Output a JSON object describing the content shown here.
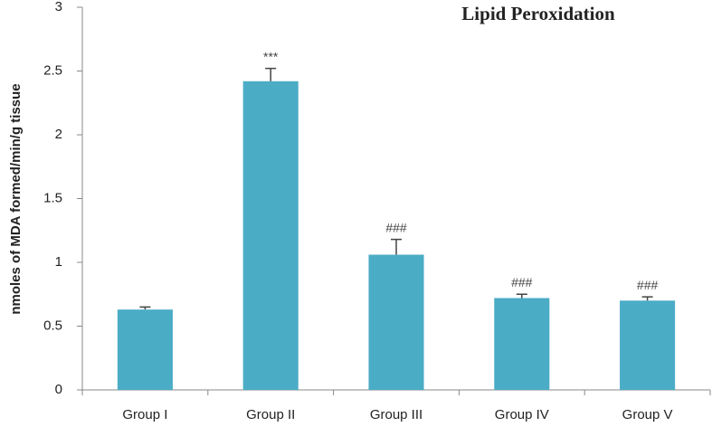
{
  "chart_data": {
    "type": "bar",
    "title": "Lipid Peroxidation",
    "y_label": "nmoles of MDA formed/min/g tissue",
    "categories": [
      "Group I",
      "Group II",
      "Group III",
      "Group IV",
      "Group V"
    ],
    "values": [
      0.63,
      2.42,
      1.06,
      0.72,
      0.7
    ],
    "errors": [
      0.02,
      0.1,
      0.12,
      0.03,
      0.03
    ],
    "annotations": [
      null,
      "***",
      "###",
      "###",
      "###"
    ],
    "color": "#4bacc6",
    "ylim": [
      0,
      3
    ],
    "yticks": [
      0,
      0.5,
      1,
      1.5,
      2,
      2.5,
      3
    ],
    "grid": false
  }
}
